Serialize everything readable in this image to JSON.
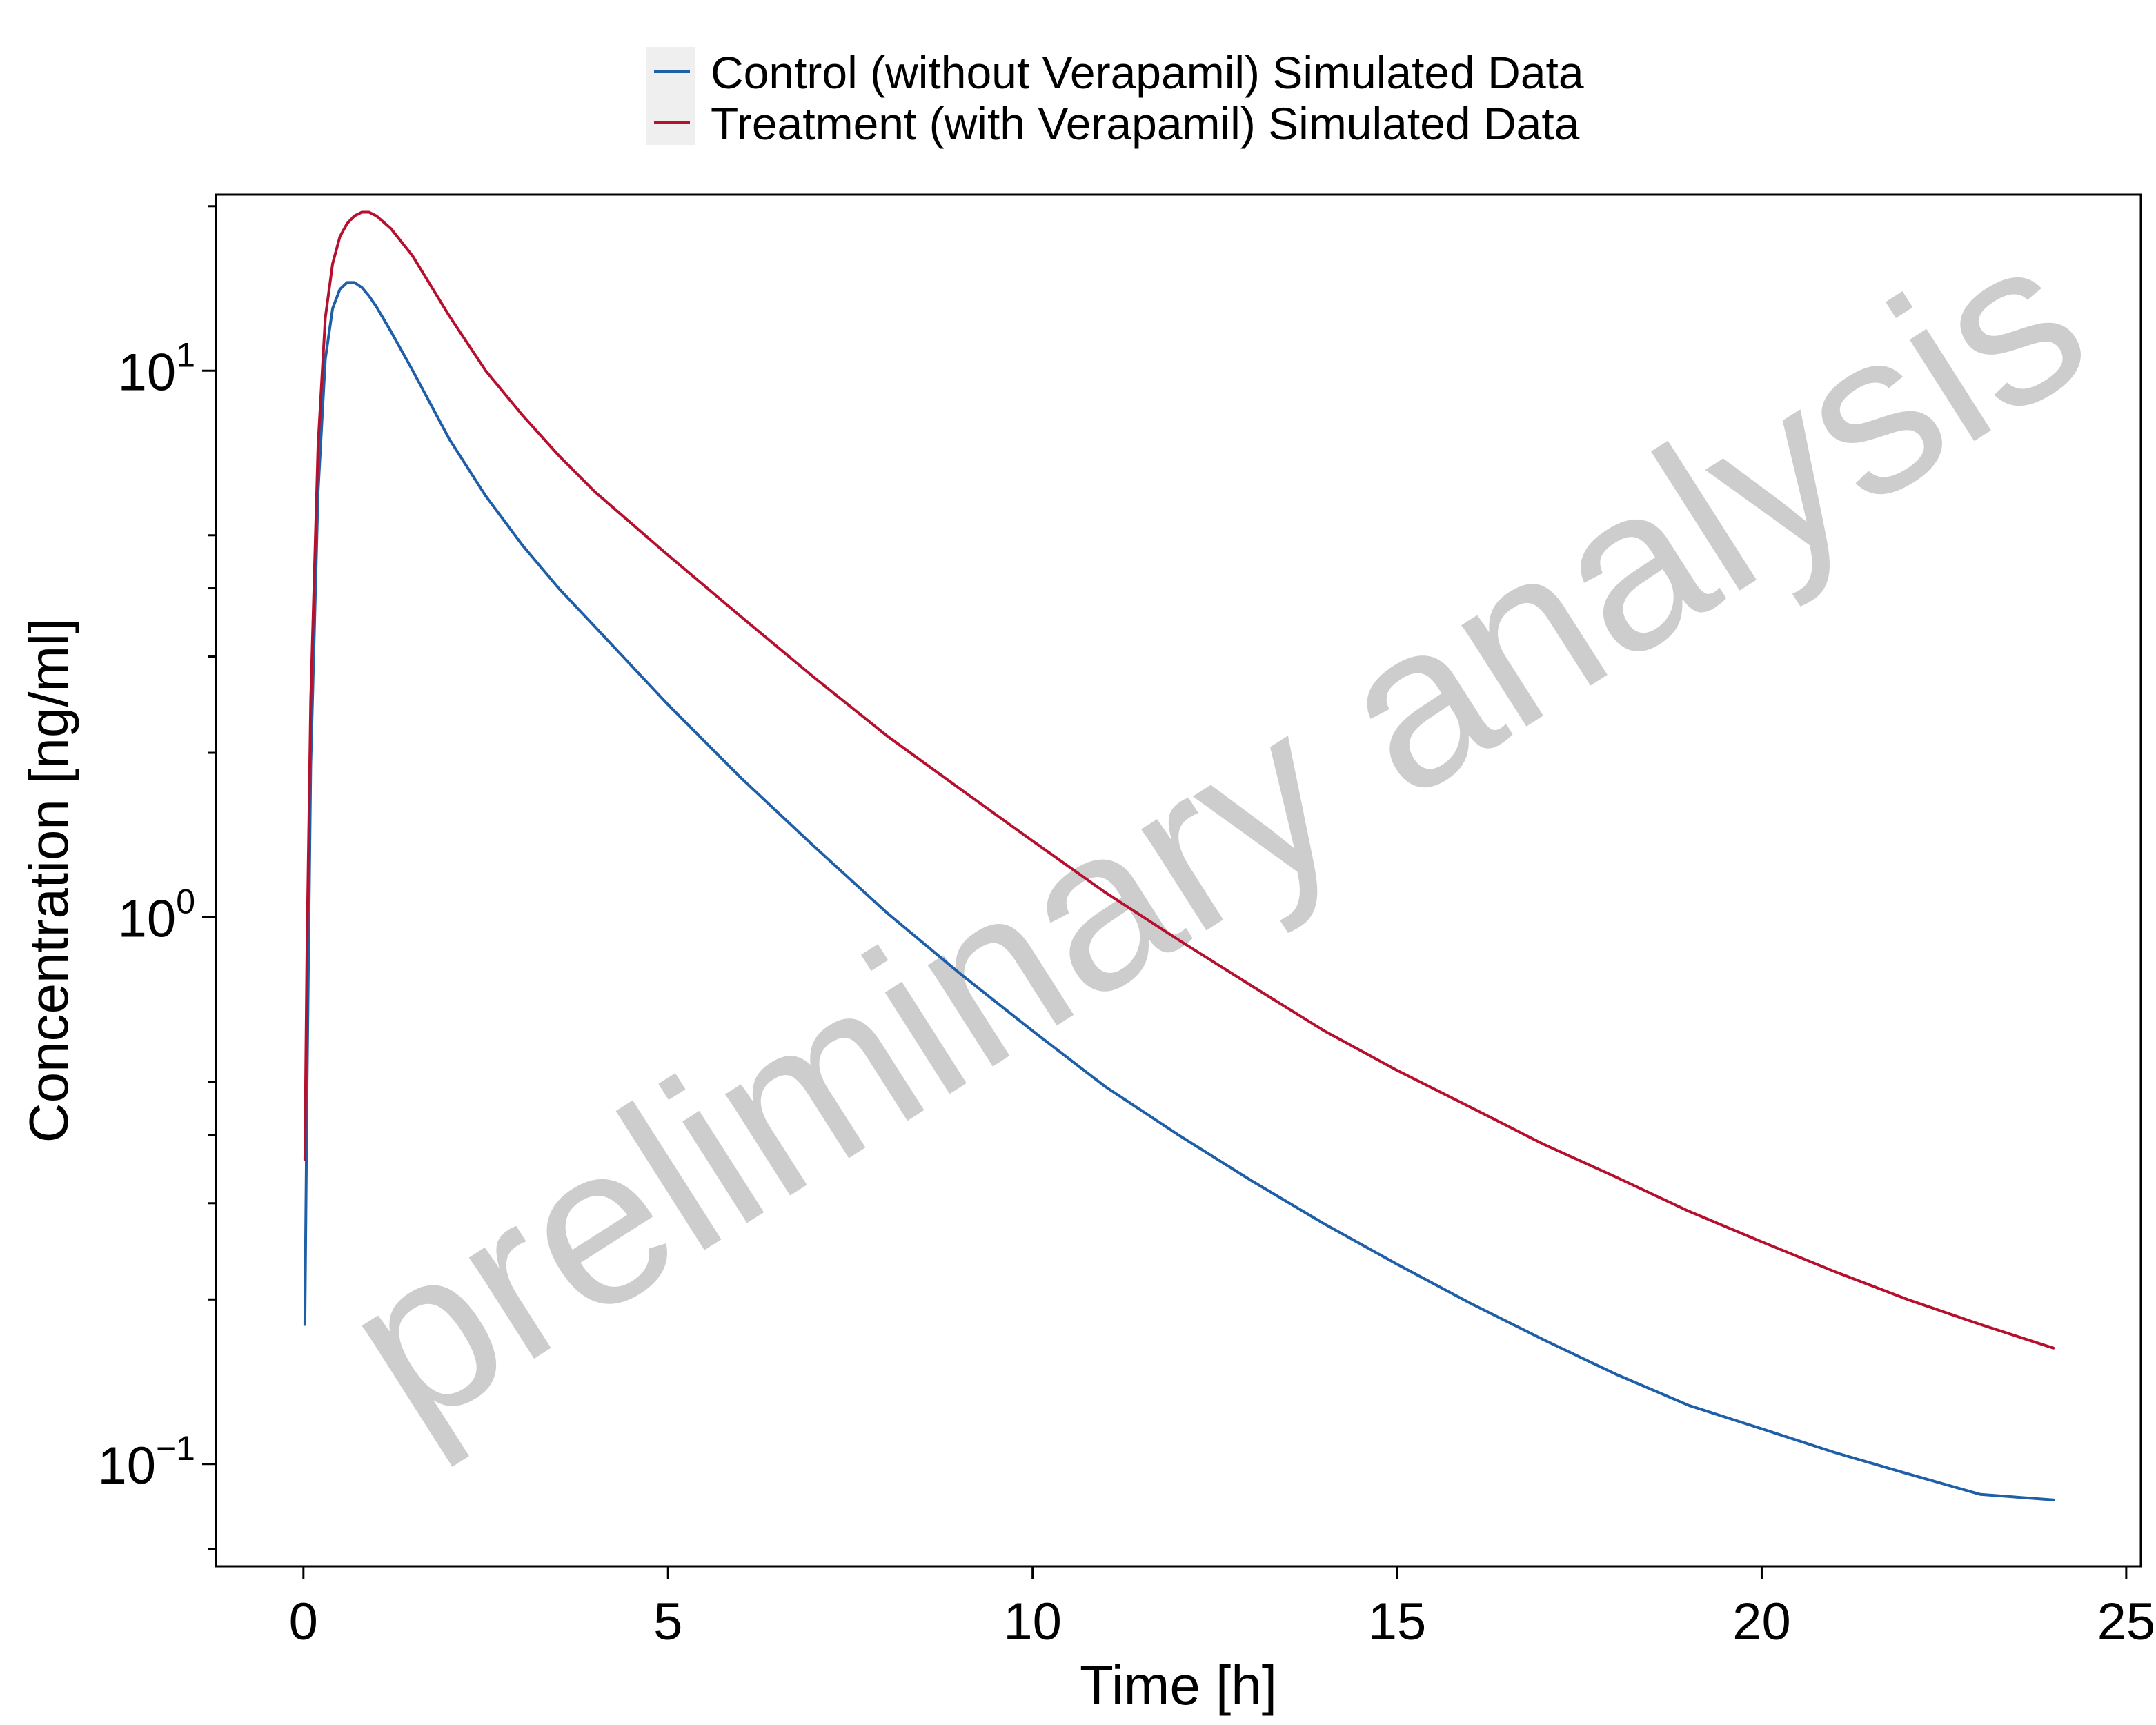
{
  "chart_data": {
    "type": "line",
    "xlabel": "Time [h]",
    "ylabel": "Concentration [ng/ml]",
    "xlim": [
      -1.2,
      25.2
    ],
    "ylim": [
      0.065,
      21
    ],
    "y_scale": "log",
    "x_ticks": [
      0,
      5,
      10,
      15,
      20,
      25
    ],
    "y_ticks": [
      {
        "value": 0.1,
        "base": "10",
        "exponent": "−1"
      },
      {
        "value": 1,
        "base": "10",
        "exponent": "0"
      },
      {
        "value": 10,
        "base": "10",
        "exponent": "1"
      }
    ],
    "y_minor_ticks": [
      0.07,
      0.2,
      0.3,
      0.4,
      0.5,
      2,
      3,
      4,
      5,
      20
    ],
    "grid": false,
    "legend_position": "top-center",
    "series": [
      {
        "name": "Control (without Verapamil) Simulated Data",
        "color": "#1f5fa8",
        "x": [
          0.02,
          0.05,
          0.1,
          0.2,
          0.3,
          0.4,
          0.5,
          0.6,
          0.7,
          0.8,
          0.9,
          1.0,
          1.2,
          1.5,
          2.0,
          2.5,
          3.0,
          3.5,
          4.0,
          5.0,
          6.0,
          7.0,
          8.0,
          9.0,
          10.0,
          11.0,
          12.0,
          13.0,
          14.0,
          15.0,
          16.0,
          17.0,
          18.0,
          19.0,
          20.0,
          21.0,
          22.0,
          23.0,
          24.0
        ],
        "y": [
          0.18,
          0.5,
          1.9,
          6.0,
          10.5,
          13.0,
          14.1,
          14.5,
          14.5,
          14.2,
          13.7,
          13.1,
          11.8,
          10.0,
          7.5,
          5.9,
          4.8,
          4.0,
          3.4,
          2.45,
          1.8,
          1.35,
          1.02,
          0.79,
          0.62,
          0.49,
          0.4,
          0.33,
          0.275,
          0.232,
          0.197,
          0.169,
          0.146,
          0.128,
          0.116,
          0.105,
          0.096,
          0.088,
          0.086
        ]
      },
      {
        "name": "Treatment (with Verapamil) Simulated Data",
        "color": "#b5112e",
        "x": [
          0.02,
          0.05,
          0.1,
          0.2,
          0.3,
          0.4,
          0.5,
          0.6,
          0.7,
          0.8,
          0.9,
          1.0,
          1.2,
          1.5,
          2.0,
          2.5,
          3.0,
          3.5,
          4.0,
          5.0,
          6.0,
          7.0,
          8.0,
          9.0,
          10.0,
          11.0,
          12.0,
          13.0,
          14.0,
          15.0,
          16.0,
          17.0,
          18.0,
          19.0,
          20.0,
          21.0,
          22.0,
          23.0,
          24.0
        ],
        "y": [
          0.36,
          0.9,
          2.5,
          7.3,
          12.5,
          15.7,
          17.6,
          18.6,
          19.2,
          19.5,
          19.5,
          19.2,
          18.2,
          16.2,
          12.6,
          10.0,
          8.3,
          7.0,
          6.0,
          4.6,
          3.55,
          2.75,
          2.15,
          1.72,
          1.38,
          1.11,
          0.91,
          0.75,
          0.62,
          0.525,
          0.45,
          0.385,
          0.335,
          0.29,
          0.255,
          0.225,
          0.2,
          0.18,
          0.163
        ]
      }
    ],
    "watermark": "preliminary analysis"
  }
}
